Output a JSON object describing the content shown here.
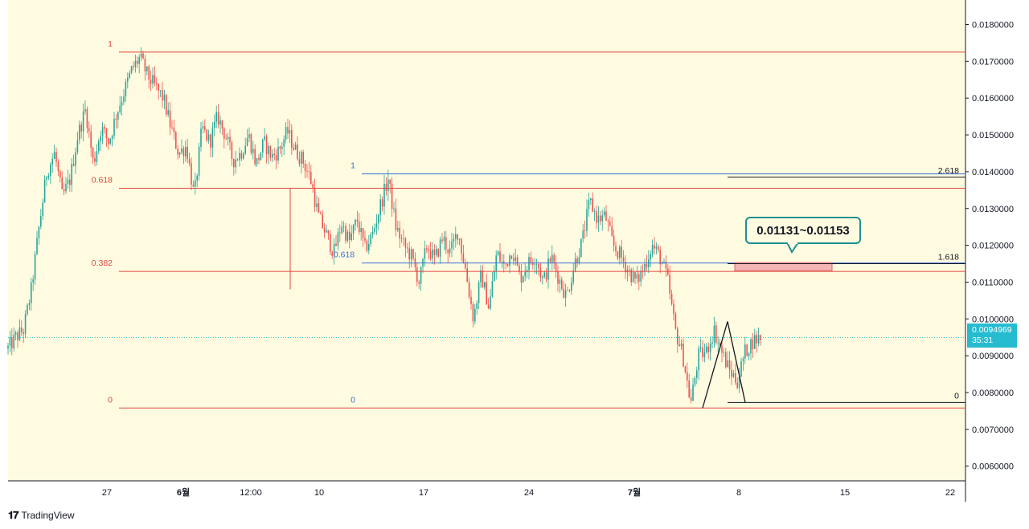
{
  "brand": {
    "name": "TradingView"
  },
  "chart_data": {
    "type": "candlestick",
    "price_axis": {
      "range": [
        0.0051,
        0.0195
      ],
      "ticks": [
        "0.0060000",
        "0.0070000",
        "0.0080000",
        "0.0090000",
        "0.0100000",
        "0.0110000",
        "0.0120000",
        "0.0130000",
        "0.0140000",
        "0.0150000",
        "0.0160000",
        "0.0170000",
        "0.0180000"
      ]
    },
    "time_axis": {
      "ticks": [
        "27",
        "6월",
        "12:00",
        "10",
        "17",
        "24",
        "7월",
        "8",
        "15",
        "22"
      ]
    },
    "current_price": {
      "value": "0.0094969",
      "countdown": "35:31"
    },
    "price_path": [
      [
        0.0092,
        0.0095,
        0.0097,
        0.0108,
        0.0125,
        0.014,
        0.0145,
        0.0133,
        0.0138,
        0.015,
        0.0157,
        0.0142,
        0.0152,
        0.0148,
        0.0156,
        0.0162,
        0.0168,
        0.0171,
        0.0166,
        0.0163,
        0.016,
        0.0152,
        0.0145,
        0.0147,
        0.0133,
        0.0152,
        0.0148,
        0.0155,
        0.015,
        0.0143,
        0.0145,
        0.015,
        0.0142,
        0.0148,
        0.0144,
        0.0146,
        0.0151,
        0.0146,
        0.0143,
        0.0138,
        0.0128,
        0.0123,
        0.0118,
        0.0126,
        0.0121,
        0.0127,
        0.0119,
        0.0123,
        0.0131,
        0.0138,
        0.0125,
        0.012,
        0.0117,
        0.011,
        0.012,
        0.0116,
        0.0122,
        0.0118,
        0.0124,
        0.0113,
        0.01,
        0.0112,
        0.0103,
        0.0118,
        0.0114,
        0.0119,
        0.0111,
        0.0115,
        0.0117,
        0.011,
        0.0117,
        0.0111,
        0.0106,
        0.0115,
        0.0121,
        0.0132,
        0.0127,
        0.0128,
        0.012,
        0.0117,
        0.0113,
        0.011,
        0.0114,
        0.012,
        0.0117,
        0.0111,
        0.0097,
        0.009,
        0.0077,
        0.009,
        0.0091,
        0.0097,
        0.0091,
        0.0086,
        0.0083,
        0.0091,
        0.0094,
        0.0095
      ]
    ],
    "fib_red": {
      "levels": [
        {
          "label": "1",
          "value": 0.01725
        },
        {
          "label": "0.618",
          "value": 0.01355
        },
        {
          "label": "0.382",
          "value": 0.01129
        },
        {
          "label": "0",
          "value": 0.00758
        }
      ],
      "stray_wick_bottom": 0.0108
    },
    "fib_blue": {
      "levels": [
        {
          "label": "1",
          "value": 0.01394
        },
        {
          "label": "0.618",
          "value": 0.01152
        },
        {
          "label": "0",
          "value": 0.00758
        }
      ]
    },
    "fib_black": {
      "levels": [
        {
          "label": "2.618",
          "value": 0.01385
        },
        {
          "label": "1.618",
          "value": 0.0115
        },
        {
          "label": "0",
          "value": 0.00773
        }
      ]
    },
    "zigzag": [
      0.00758,
      0.00993,
      0.00773
    ],
    "target_zone": {
      "low": 0.01131,
      "high": 0.01153,
      "label": "0.01131~0.01153"
    },
    "colors": {
      "up": "#26a69a",
      "down": "#ef5350",
      "red_line": "#e0473f",
      "blue_line": "#3a6fd8",
      "black_line": "#131722",
      "background": "#fffbe0",
      "price_tag": "#26bcd0"
    }
  }
}
